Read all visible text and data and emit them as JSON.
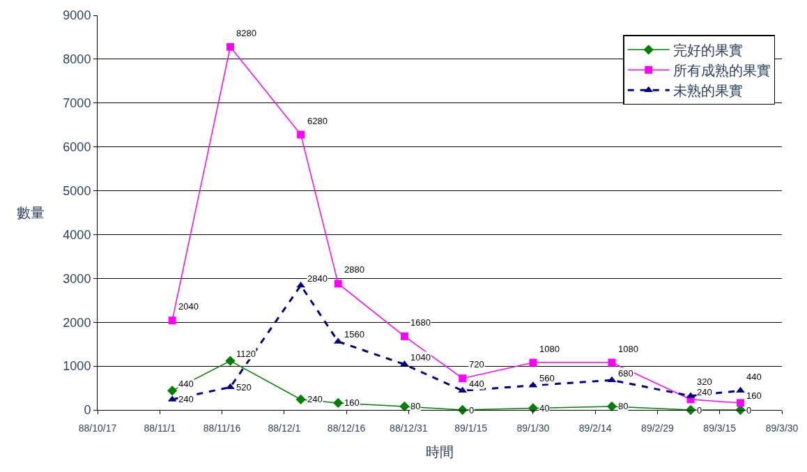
{
  "chart_data": {
    "type": "line",
    "xlabel": "時間",
    "ylabel": "數量",
    "x": [
      "1999-11-04",
      "1999-11-18",
      "1999-12-05",
      "1999-12-14",
      "1999-12-30",
      "2000-01-13",
      "2000-01-30",
      "2000-02-18",
      "2000-03-08",
      "2000-03-20"
    ],
    "series": [
      {
        "name": "完好的果實",
        "color": "#008000",
        "marker": "diamond",
        "line_style": "solid",
        "values": [
          440,
          1120,
          240,
          160,
          80,
          0,
          40,
          80,
          0,
          0
        ]
      },
      {
        "name": "所有成熟的果實",
        "color": "#ff00ff",
        "marker": "square",
        "line_style": "solid",
        "values": [
          2040,
          8280,
          6280,
          2880,
          1680,
          720,
          1080,
          1080,
          240,
          160
        ]
      },
      {
        "name": "未熟的果實",
        "color": "#000080",
        "marker": "triangle",
        "line_style": "dashed",
        "values": [
          240,
          520,
          2840,
          1560,
          1040,
          440,
          560,
          680,
          320,
          440
        ]
      }
    ],
    "xlim": [
      "1999-10-17",
      "2000-03-30"
    ],
    "xticks": [
      {
        "value": "1999-10-17",
        "label": "88/10/17"
      },
      {
        "value": "1999-11-01",
        "label": "88/11/1"
      },
      {
        "value": "1999-11-16",
        "label": "88/11/16"
      },
      {
        "value": "1999-12-01",
        "label": "88/12/1"
      },
      {
        "value": "1999-12-16",
        "label": "88/12/16"
      },
      {
        "value": "1999-12-31",
        "label": "88/12/31"
      },
      {
        "value": "2000-01-15",
        "label": "89/1/15"
      },
      {
        "value": "2000-01-30",
        "label": "89/1/30"
      },
      {
        "value": "2000-02-14",
        "label": "89/2/14"
      },
      {
        "value": "2000-02-29",
        "label": "89/2/29"
      },
      {
        "value": "2000-03-15",
        "label": "89/3/15"
      },
      {
        "value": "2000-03-30",
        "label": "89/3/30"
      }
    ],
    "ylim": [
      0,
      9000
    ],
    "yticks": [
      0,
      1000,
      2000,
      3000,
      4000,
      5000,
      6000,
      7000,
      8000,
      9000
    ],
    "grid": "y",
    "legend": "top right",
    "data_labels": true
  }
}
